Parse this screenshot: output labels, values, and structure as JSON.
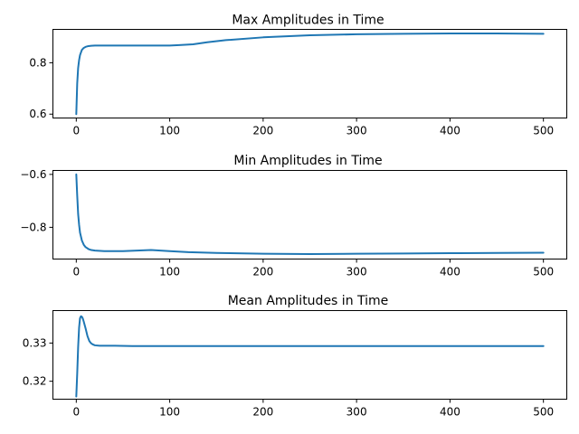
{
  "figure": {
    "background": "#ffffff",
    "line_color": "#1f77b4"
  },
  "chart_data": [
    {
      "type": "line",
      "title": "Max Amplitudes in Time",
      "xlabel": "",
      "ylabel": "",
      "xlim": [
        -25,
        525
      ],
      "ylim": [
        0.585,
        0.93
      ],
      "xticks": [
        0,
        100,
        200,
        300,
        400,
        500
      ],
      "xtick_labels": [
        "0",
        "100",
        "200",
        "300",
        "400",
        "500"
      ],
      "yticks": [
        0.6,
        0.8
      ],
      "ytick_labels": [
        "0.6",
        "0.8"
      ],
      "grid": false,
      "x": [
        0,
        1,
        2,
        3,
        4,
        6,
        8,
        10,
        13,
        16,
        20,
        30,
        50,
        80,
        100,
        110,
        125,
        140,
        160,
        200,
        250,
        300,
        350,
        400,
        450,
        500
      ],
      "y": [
        0.6,
        0.72,
        0.78,
        0.81,
        0.83,
        0.85,
        0.858,
        0.862,
        0.865,
        0.866,
        0.867,
        0.867,
        0.867,
        0.867,
        0.867,
        0.869,
        0.872,
        0.88,
        0.888,
        0.899,
        0.907,
        0.911,
        0.913,
        0.914,
        0.914,
        0.913
      ]
    },
    {
      "type": "line",
      "title": "Min Amplitudes in Time",
      "xlabel": "",
      "ylabel": "",
      "xlim": [
        -25,
        525
      ],
      "ylim": [
        -0.92,
        -0.585
      ],
      "xticks": [
        0,
        100,
        200,
        300,
        400,
        500
      ],
      "xtick_labels": [
        "0",
        "100",
        "200",
        "300",
        "400",
        "500"
      ],
      "yticks": [
        -0.6,
        -0.8
      ],
      "ytick_labels": [
        "−0.6",
        "−0.8"
      ],
      "grid": false,
      "x": [
        0,
        1,
        2,
        3,
        4,
        6,
        8,
        10,
        13,
        16,
        20,
        30,
        50,
        80,
        100,
        120,
        150,
        200,
        250,
        300,
        350,
        400,
        450,
        500
      ],
      "y": [
        -0.6,
        -0.68,
        -0.75,
        -0.79,
        -0.82,
        -0.85,
        -0.866,
        -0.875,
        -0.882,
        -0.886,
        -0.888,
        -0.89,
        -0.89,
        -0.886,
        -0.89,
        -0.894,
        -0.897,
        -0.9,
        -0.901,
        -0.9,
        -0.899,
        -0.898,
        -0.897,
        -0.896
      ]
    },
    {
      "type": "line",
      "title": "Mean Amplitudes in Time",
      "xlabel": "",
      "ylabel": "",
      "xlim": [
        -25,
        525
      ],
      "ylim": [
        0.3153,
        0.3385
      ],
      "xticks": [
        0,
        100,
        200,
        300,
        400,
        500
      ],
      "xtick_labels": [
        "0",
        "100",
        "200",
        "300",
        "400",
        "500"
      ],
      "yticks": [
        0.32,
        0.33
      ],
      "ytick_labels": [
        "0.32",
        "0.33"
      ],
      "grid": false,
      "x": [
        0,
        1,
        2,
        3,
        4,
        5,
        6,
        7,
        8,
        10,
        12,
        14,
        16,
        18,
        20,
        25,
        30,
        40,
        60,
        100,
        200,
        300,
        400,
        500
      ],
      "y": [
        0.316,
        0.322,
        0.329,
        0.334,
        0.3365,
        0.337,
        0.3369,
        0.3364,
        0.3356,
        0.3338,
        0.3318,
        0.3305,
        0.3299,
        0.3296,
        0.3294,
        0.3293,
        0.3293,
        0.3293,
        0.3292,
        0.3292,
        0.3292,
        0.3292,
        0.3292,
        0.3292
      ]
    }
  ]
}
